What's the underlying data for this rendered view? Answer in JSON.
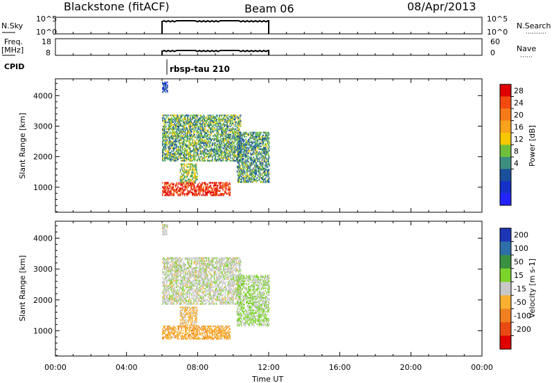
{
  "header": {
    "title": "Blackstone (fitACF)",
    "beam": "Beam 06",
    "date": "08/Apr/2013"
  },
  "panels": {
    "nsky": {
      "label": "N.Sky",
      "ticks": [
        "10^5",
        "10^0"
      ],
      "right_ticks": [
        "10^5",
        "10^0"
      ],
      "right_label": "N.Search"
    },
    "freq": {
      "label_top": "Freq.",
      "label_bottom": "[MHz]",
      "ticks": [
        "18",
        "8"
      ],
      "right_ticks": [
        "60",
        "0"
      ],
      "right_label": "Nave"
    },
    "cpid": {
      "label": "CPID",
      "program": "rbsp-tau 210"
    }
  },
  "colorbars": {
    "power": {
      "label": "Power [dB]",
      "ticks": [
        "28",
        "24",
        "20",
        "16",
        "12",
        "8",
        "4"
      ],
      "colors": [
        "#e00000",
        "#f24a10",
        "#f67a18",
        "#f9a21c",
        "#f6c800",
        "#6fbf3c",
        "#3c8f80",
        "#1a4f9a",
        "#1530c8",
        "#2323ff"
      ]
    },
    "velocity": {
      "label": "Velocity [m s-1]",
      "ticks": [
        "200",
        "100",
        "50",
        "15",
        "-15",
        "-50",
        "-100",
        "-200"
      ],
      "colors": [
        "#1d35b6",
        "#2e6fa8",
        "#3a9142",
        "#7cd42a",
        "#c8c8c8",
        "#f8b030",
        "#f08020",
        "#e84a12",
        "#e00000"
      ]
    }
  },
  "x_tick_labels": [
    "00:00",
    "04:00",
    "08:00",
    "12:00",
    "16:00",
    "20:00",
    "00:00"
  ],
  "x_axis_label": "Time UT",
  "chart_data": [
    {
      "type": "heatmap",
      "name": "power",
      "xlabel": "Time UT",
      "ylabel": "Slant Range [km]",
      "xlim": [
        0,
        24
      ],
      "ylim": [
        180,
        4550
      ],
      "y_ticks": [
        1000,
        2000,
        3000,
        4000
      ],
      "y_tick_labels": [
        "1000",
        "2000",
        "3000",
        "4000"
      ],
      "colorbar_range": [
        0,
        30
      ],
      "regions": [
        {
          "t": [
            6.0,
            9.8
          ],
          "r": [
            720,
            1150
          ],
          "value": 27
        },
        {
          "t": [
            7.0,
            8.0
          ],
          "r": [
            1150,
            1750
          ],
          "value": 14
        },
        {
          "t": [
            6.0,
            10.4
          ],
          "r": [
            1850,
            3350
          ],
          "value": 12
        },
        {
          "t": [
            10.2,
            12.0
          ],
          "r": [
            1150,
            2800
          ],
          "value": 11
        },
        {
          "t": [
            6.0,
            6.3
          ],
          "r": [
            4100,
            4450
          ],
          "value": 5
        }
      ]
    },
    {
      "type": "heatmap",
      "name": "velocity",
      "xlabel": "Time UT",
      "ylabel": "Slant Range [km]",
      "xlim": [
        0,
        24
      ],
      "ylim": [
        180,
        4550
      ],
      "y_ticks": [
        1000,
        2000,
        3000,
        4000
      ],
      "y_tick_labels": [
        "1000",
        "2000",
        "3000",
        "4000"
      ],
      "colorbar_range": [
        -250,
        250
      ],
      "regions": [
        {
          "t": [
            6.0,
            9.8
          ],
          "r": [
            720,
            1150
          ],
          "value": -60
        },
        {
          "t": [
            7.0,
            8.0
          ],
          "r": [
            1150,
            1750
          ],
          "value": -40
        },
        {
          "t": [
            6.0,
            10.4
          ],
          "r": [
            1850,
            3350
          ],
          "value": 5
        },
        {
          "t": [
            10.2,
            12.0
          ],
          "r": [
            1150,
            2800
          ],
          "value": 30
        },
        {
          "t": [
            6.0,
            6.3
          ],
          "r": [
            4100,
            4450
          ],
          "value": 0
        }
      ]
    }
  ]
}
